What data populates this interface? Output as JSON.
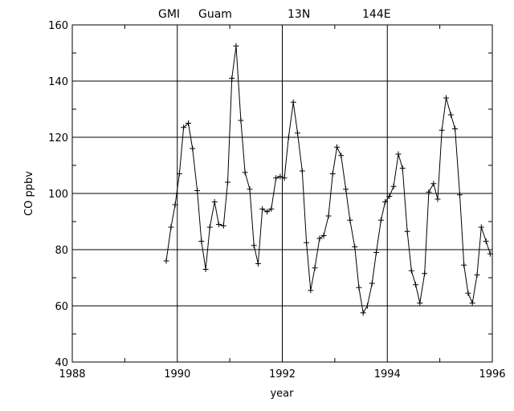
{
  "chart_data": {
    "type": "line",
    "title_parts": [
      "GMI",
      "Guam",
      "13N",
      "144E"
    ],
    "xlabel": "year",
    "ylabel": "CO ppbv",
    "xlim": [
      1988,
      1996
    ],
    "ylim": [
      40,
      160
    ],
    "x_ticks": [
      1988,
      1990,
      1992,
      1994,
      1996
    ],
    "y_ticks": [
      40,
      60,
      80,
      100,
      120,
      140,
      160
    ],
    "grid": true,
    "marker": "plus",
    "series": [
      {
        "points": [
          [
            1989.79,
            76
          ],
          [
            1989.88,
            88
          ],
          [
            1989.96,
            96
          ],
          [
            1990.04,
            107
          ],
          [
            1990.12,
            123.5
          ],
          [
            1990.21,
            125
          ],
          [
            1990.29,
            116
          ],
          [
            1990.38,
            101
          ],
          [
            1990.46,
            83
          ],
          [
            1990.54,
            73
          ],
          [
            1990.62,
            88
          ],
          [
            1990.71,
            97
          ],
          [
            1990.79,
            89
          ],
          [
            1990.88,
            88.5
          ],
          [
            1990.96,
            104
          ],
          [
            1991.04,
            141
          ],
          [
            1991.12,
            152.5
          ],
          [
            1991.21,
            126
          ],
          [
            1991.29,
            107.5
          ],
          [
            1991.38,
            101.5
          ],
          [
            1991.46,
            81.5
          ],
          [
            1991.54,
            75
          ],
          [
            1991.62,
            94.5
          ],
          [
            1991.71,
            93.5
          ],
          [
            1991.79,
            94.5
          ],
          [
            1991.88,
            105.5
          ],
          [
            1991.96,
            106
          ],
          [
            1992.04,
            105.5
          ],
          [
            1992.12,
            120
          ],
          [
            1992.21,
            132.5
          ],
          [
            1992.29,
            121.5
          ],
          [
            1992.38,
            108
          ],
          [
            1992.46,
            82.5
          ],
          [
            1992.54,
            65.5
          ],
          [
            1992.62,
            73.5
          ],
          [
            1992.71,
            84
          ],
          [
            1992.79,
            85
          ],
          [
            1992.88,
            92
          ],
          [
            1992.96,
            107
          ],
          [
            1993.04,
            116.5
          ],
          [
            1993.12,
            113.5
          ],
          [
            1993.21,
            101.5
          ],
          [
            1993.29,
            90.5
          ],
          [
            1993.38,
            81
          ],
          [
            1993.46,
            66.5
          ],
          [
            1993.54,
            57.5
          ],
          [
            1993.62,
            60
          ],
          [
            1993.71,
            68
          ],
          [
            1993.79,
            79
          ],
          [
            1993.88,
            90.5
          ],
          [
            1993.96,
            97
          ],
          [
            1994.04,
            99
          ],
          [
            1994.12,
            102.5
          ],
          [
            1994.21,
            114
          ],
          [
            1994.29,
            109
          ],
          [
            1994.38,
            86.5
          ],
          [
            1994.46,
            72.5
          ],
          [
            1994.54,
            67.5
          ],
          [
            1994.62,
            61
          ],
          [
            1994.71,
            71.5
          ],
          [
            1994.79,
            100.5
          ],
          [
            1994.88,
            103.5
          ],
          [
            1994.96,
            98
          ],
          [
            1995.04,
            122.5
          ],
          [
            1995.12,
            134
          ],
          [
            1995.21,
            128
          ],
          [
            1995.29,
            123
          ],
          [
            1995.38,
            99.5
          ],
          [
            1995.46,
            74.5
          ],
          [
            1995.54,
            64.5
          ],
          [
            1995.62,
            61
          ],
          [
            1995.71,
            71
          ],
          [
            1995.79,
            88
          ],
          [
            1995.88,
            83
          ],
          [
            1995.96,
            78.5
          ]
        ]
      }
    ]
  }
}
